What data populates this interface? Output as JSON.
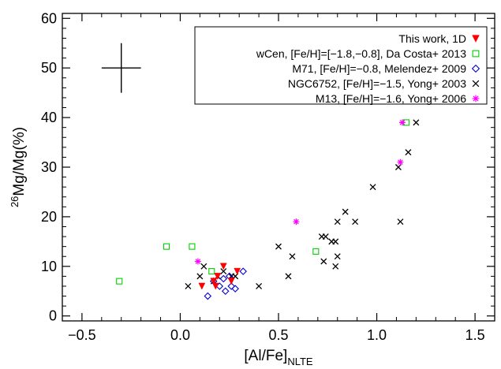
{
  "chart_data": {
    "type": "scatter",
    "title": "",
    "xlabel": {
      "base": "[Al/Fe]",
      "sub": "NLTE"
    },
    "ylabel": {
      "sup": "26",
      "rest": "Mg/Mg(%)"
    },
    "xlim": [
      -0.6,
      1.6
    ],
    "ylim": [
      -1,
      61
    ],
    "xticks": [
      -0.5,
      0.0,
      0.5,
      1.0,
      1.5
    ],
    "xtick_labels": [
      "−0.5",
      "0.0",
      "0.5",
      "1.0",
      "1.5"
    ],
    "yticks": [
      0,
      10,
      20,
      30,
      40,
      50,
      60
    ],
    "ytick_labels": [
      "0",
      "10",
      "20",
      "30",
      "40",
      "50",
      "60"
    ],
    "grid": false,
    "legend_position": "top-right",
    "error_bar": {
      "x": -0.3,
      "y": 50,
      "xerr": 0.1,
      "yerr": 5
    },
    "series": [
      {
        "name": "This work, 1D",
        "marker": "triangle-down-filled",
        "color": "#ff0000",
        "points": [
          [
            0.11,
            6
          ],
          [
            0.17,
            7
          ],
          [
            0.19,
            8
          ],
          [
            0.29,
            9
          ],
          [
            0.22,
            10
          ],
          [
            0.26,
            7
          ],
          [
            0.18,
            6
          ]
        ]
      },
      {
        "name": "wCen, [Fe/H]=[−1.8,−0.8], Da Costa+ 2013",
        "marker": "square-open",
        "color": "#00d000",
        "points": [
          [
            -0.31,
            7
          ],
          [
            -0.07,
            14
          ],
          [
            0.06,
            14
          ],
          [
            0.16,
            9
          ],
          [
            0.69,
            13
          ],
          [
            1.15,
            39
          ]
        ]
      },
      {
        "name": "M71, [Fe/H]=−0.8, Melendez+ 2009",
        "marker": "diamond-open",
        "color": "#0000d0",
        "points": [
          [
            0.14,
            4
          ],
          [
            0.17,
            7
          ],
          [
            0.2,
            6
          ],
          [
            0.22,
            7.5
          ],
          [
            0.23,
            5
          ],
          [
            0.25,
            8
          ],
          [
            0.26,
            6
          ],
          [
            0.28,
            5.5
          ],
          [
            0.32,
            9
          ]
        ]
      },
      {
        "name": "NGC6752, [Fe/H]=−1.5, Yong+ 2003",
        "marker": "x",
        "color": "#000000",
        "points": [
          [
            0.04,
            6
          ],
          [
            0.1,
            8
          ],
          [
            0.12,
            10
          ],
          [
            0.17,
            7
          ],
          [
            0.19,
            8
          ],
          [
            0.22,
            9
          ],
          [
            0.26,
            8
          ],
          [
            0.28,
            8
          ],
          [
            0.4,
            6
          ],
          [
            0.5,
            14
          ],
          [
            0.55,
            8
          ],
          [
            0.57,
            12
          ],
          [
            0.72,
            16
          ],
          [
            0.74,
            16
          ],
          [
            0.73,
            11
          ],
          [
            0.77,
            15
          ],
          [
            0.79,
            15
          ],
          [
            0.8,
            19
          ],
          [
            0.8,
            12
          ],
          [
            0.79,
            10
          ],
          [
            0.84,
            21
          ],
          [
            0.89,
            19
          ],
          [
            0.98,
            26
          ],
          [
            1.11,
            30
          ],
          [
            1.12,
            19
          ],
          [
            1.16,
            33
          ],
          [
            1.2,
            39
          ]
        ]
      },
      {
        "name": "M13, [Fe/H]=−1.6, Yong+ 2006",
        "marker": "asterisk",
        "color": "#ff00ff",
        "points": [
          [
            0.09,
            11
          ],
          [
            0.59,
            19
          ],
          [
            1.12,
            31
          ],
          [
            1.13,
            39
          ]
        ]
      }
    ]
  }
}
